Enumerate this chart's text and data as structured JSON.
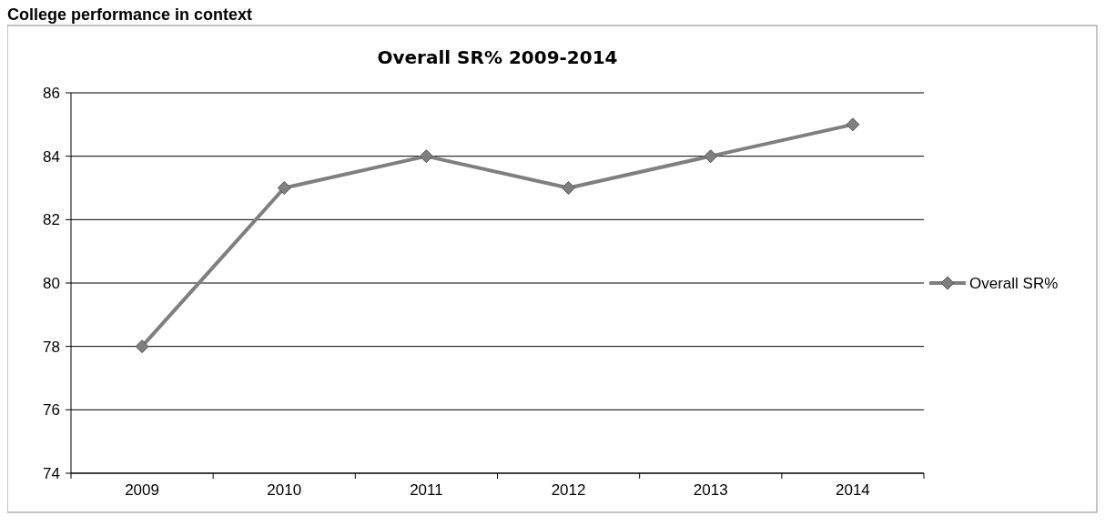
{
  "chart_data": {
    "type": "line",
    "title": "Overall SR% 2009-2014",
    "annotations": [
      "College performance in context"
    ],
    "categories": [
      "2009",
      "2010",
      "2011",
      "2012",
      "2013",
      "2014"
    ],
    "series": [
      {
        "name": "Overall SR%",
        "color": "#7f7f7f",
        "values": [
          78,
          83,
          84,
          83,
          84,
          85
        ]
      }
    ],
    "ylim": [
      74,
      86
    ],
    "yticks": [
      74,
      76,
      78,
      80,
      82,
      84,
      86
    ],
    "grid": "y",
    "legend": "right",
    "marker": "diamond",
    "line_style": "solid"
  }
}
